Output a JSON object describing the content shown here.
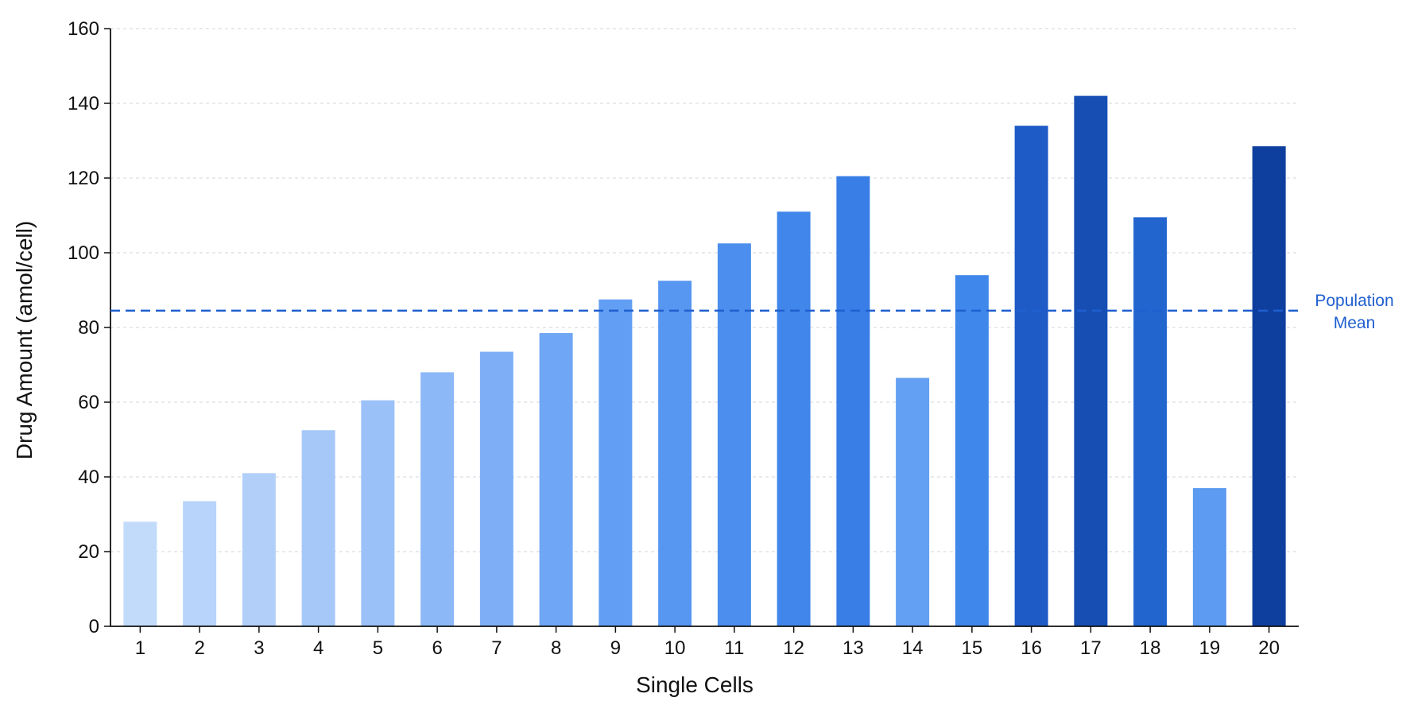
{
  "chart_data": {
    "type": "bar",
    "title": "",
    "xlabel": "Single Cells",
    "ylabel": "Drug Amount (amol/cell)",
    "categories": [
      "1",
      "2",
      "3",
      "4",
      "5",
      "6",
      "7",
      "8",
      "9",
      "10",
      "11",
      "12",
      "13",
      "14",
      "15",
      "16",
      "17",
      "18",
      "19",
      "20"
    ],
    "values": [
      28,
      33.5,
      41,
      52.5,
      60.5,
      68,
      73.5,
      78.5,
      87.5,
      92.5,
      102.5,
      111,
      120.5,
      66.5,
      94,
      134,
      142,
      109.5,
      37,
      128.5
    ],
    "colors": [
      "#c3dbfb",
      "#b9d4fa",
      "#b2cffa",
      "#a5c8f9",
      "#9ac1f8",
      "#8cb8f7",
      "#7eaff6",
      "#6fa6f5",
      "#629ef3",
      "#5796f1",
      "#4c8eee",
      "#4186ea",
      "#387ee6",
      "#639ff2",
      "#3f87eb",
      "#1e5bc6",
      "#174eb3",
      "#2265cf",
      "#5c9bf1",
      "#0e3f9e"
    ],
    "ylim": [
      0,
      160
    ],
    "yticks": [
      0,
      20,
      40,
      60,
      80,
      100,
      120,
      140,
      160
    ],
    "grid": true,
    "reference_line": {
      "value": 84.5,
      "label_lines": [
        "Population",
        "Mean"
      ],
      "color": "#1f5fcf",
      "style": "dashed"
    }
  }
}
